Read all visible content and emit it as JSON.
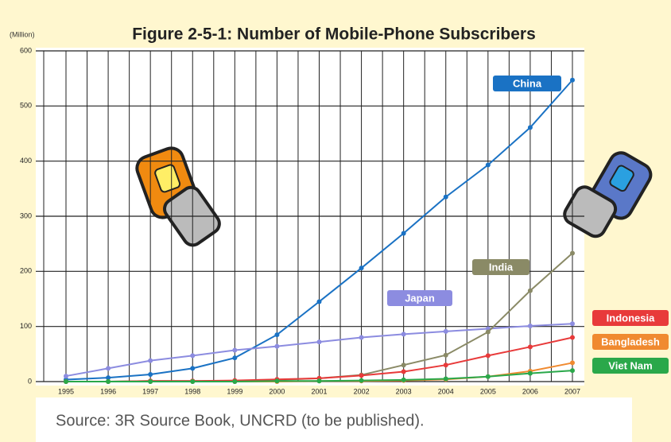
{
  "chart_data": {
    "type": "line",
    "title": "Figure 2-5-1: Number of Mobile-Phone Subscribers",
    "y_label": "(Million)",
    "source": "Source: 3R Source Book, UNCRD (to be published).",
    "categories": [
      "1995",
      "1996",
      "1997",
      "1998",
      "1999",
      "2000",
      "2001",
      "2002",
      "2003",
      "2004",
      "2005",
      "2006",
      "2007"
    ],
    "ylim": [
      0,
      600
    ],
    "yticks": [
      0,
      100,
      200,
      300,
      400,
      500,
      600
    ],
    "grid": true,
    "series": [
      {
        "name": "China",
        "color": "#1a72c4",
        "values": [
          3.6,
          7,
          13,
          24,
          43,
          85,
          145,
          206,
          269,
          335,
          393,
          461,
          547
        ]
      },
      {
        "name": "Japan",
        "color": "#8c8ce0",
        "values": [
          10,
          24,
          38,
          47,
          57,
          64,
          72,
          80,
          86,
          91,
          96,
          101,
          105
        ]
      },
      {
        "name": "India",
        "color": "#8a8a66",
        "values": [
          0,
          0,
          1,
          1,
          1.5,
          3,
          6,
          12,
          30,
          48,
          90,
          165,
          233
        ]
      },
      {
        "name": "Indonesia",
        "color": "#e83a3a",
        "values": [
          0,
          0,
          1,
          1,
          2,
          4,
          6,
          11,
          18,
          30,
          47,
          63,
          80
        ]
      },
      {
        "name": "Bangladesh",
        "color": "#f08a30",
        "values": [
          0,
          0,
          0,
          0,
          0,
          0,
          1,
          1,
          2,
          4,
          9,
          19,
          34
        ]
      },
      {
        "name": "Viet Nam",
        "color": "#2aa84a",
        "values": [
          0,
          0,
          0,
          0,
          0,
          1,
          1,
          2,
          3,
          5,
          9,
          15,
          20
        ]
      }
    ]
  }
}
